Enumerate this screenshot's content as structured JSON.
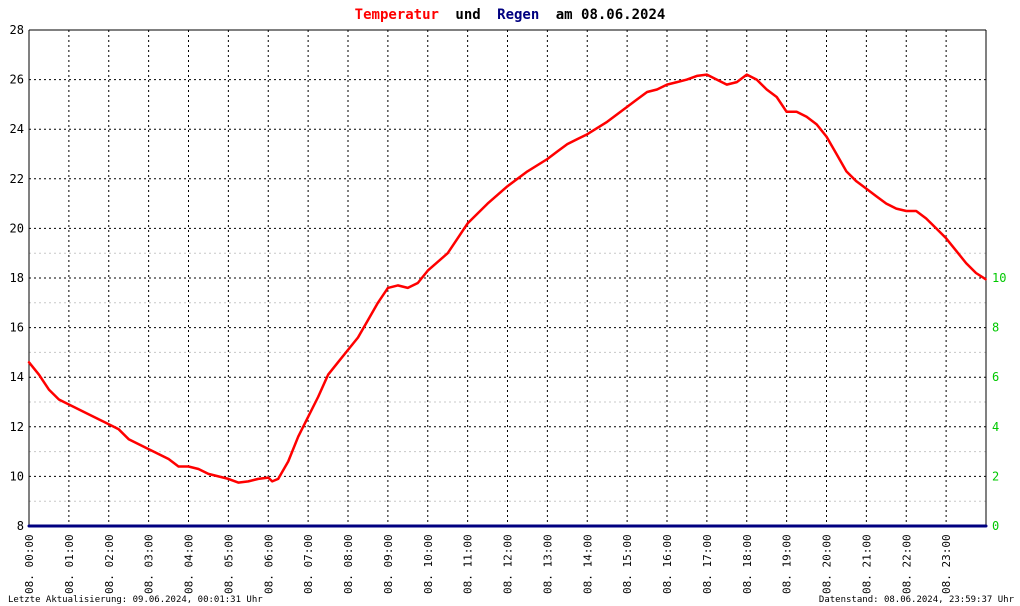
{
  "title": {
    "part1": "Temperatur",
    "part2": "und",
    "part3": "Regen",
    "part4": "am 08.06.2024",
    "color1": "#ff0000",
    "color2": "#000000",
    "color3": "#000080",
    "color4": "#000000"
  },
  "footer": {
    "left": "Letzte Aktualisierung: 09.06.2024, 00:01:31 Uhr",
    "right": "Datenstand: 08.06.2024, 23:59:37 Uhr"
  },
  "colors": {
    "temperature": "#ff0000",
    "rain": "#000080",
    "right_axis": "#00c800",
    "grid": "#000000",
    "subgrid": "#c8c8c8"
  },
  "chart_data": {
    "type": "line",
    "title": "Temperatur und Regen am 08.06.2024",
    "grid": true,
    "left_axis": {
      "ylim": [
        8,
        28
      ],
      "ticks": [
        8,
        10,
        12,
        14,
        16,
        18,
        20,
        22,
        24,
        26,
        28
      ]
    },
    "right_axis": {
      "ylim": [
        0,
        20
      ],
      "ticks": [
        0,
        2,
        4,
        6,
        8,
        10
      ],
      "tick_labels": [
        "0",
        "2",
        "4",
        "6",
        "8",
        "10"
      ]
    },
    "x_axis": {
      "xlim_hours": [
        0,
        24
      ],
      "tick_labels": [
        "08. 00:00",
        "08. 01:00",
        "08. 02:00",
        "08. 03:00",
        "08. 04:00",
        "08. 05:00",
        "08. 06:00",
        "08. 07:00",
        "08. 08:00",
        "08. 09:00",
        "08. 10:00",
        "08. 11:00",
        "08. 12:00",
        "08. 13:00",
        "08. 14:00",
        "08. 15:00",
        "08. 16:00",
        "08. 17:00",
        "08. 18:00",
        "08. 19:00",
        "08. 20:00",
        "08. 21:00",
        "08. 22:00",
        "08. 23:00"
      ]
    },
    "series": [
      {
        "key": "temperature",
        "axis": "left",
        "x_hours": [
          0,
          0.25,
          0.5,
          0.75,
          1,
          1.5,
          2,
          2.25,
          2.5,
          3,
          3.5,
          3.75,
          4,
          4.25,
          4.5,
          5,
          5.25,
          5.5,
          5.75,
          6,
          6.1,
          6.25,
          6.5,
          6.75,
          7,
          7.25,
          7.5,
          7.75,
          8,
          8.25,
          8.5,
          8.75,
          9,
          9.25,
          9.5,
          9.75,
          10,
          10.5,
          11,
          11.5,
          12,
          12.5,
          13,
          13.25,
          13.5,
          13.75,
          14,
          14.5,
          15,
          15.25,
          15.5,
          15.75,
          16,
          16.25,
          16.5,
          16.75,
          17,
          17.25,
          17.5,
          17.75,
          18,
          18.25,
          18.5,
          18.75,
          19,
          19.25,
          19.5,
          19.75,
          20,
          20.25,
          20.5,
          20.75,
          21,
          21.25,
          21.5,
          21.75,
          22,
          22.25,
          22.5,
          22.75,
          23,
          23.25,
          23.5,
          23.75,
          23.99
        ],
        "values": [
          14.6,
          14.1,
          13.5,
          13.1,
          12.9,
          12.5,
          12.1,
          11.9,
          11.5,
          11.1,
          10.7,
          10.4,
          10.4,
          10.3,
          10.1,
          9.9,
          9.75,
          9.8,
          9.9,
          9.95,
          9.8,
          9.9,
          10.6,
          11.6,
          12.4,
          13.2,
          14.1,
          14.6,
          15.1,
          15.6,
          16.3,
          17.0,
          17.6,
          17.7,
          17.6,
          17.8,
          18.3,
          19.0,
          20.2,
          21.0,
          21.7,
          22.3,
          22.8,
          23.1,
          23.4,
          23.6,
          23.8,
          24.3,
          24.9,
          25.2,
          25.5,
          25.6,
          25.8,
          25.9,
          26.0,
          26.15,
          26.2,
          26.0,
          25.8,
          25.9,
          26.2,
          26.0,
          25.6,
          25.3,
          24.7,
          24.7,
          24.5,
          24.2,
          23.7,
          23.0,
          22.3,
          21.9,
          21.6,
          21.3,
          21.0,
          20.8,
          20.7,
          20.7,
          20.4,
          20.0,
          19.6,
          19.1,
          18.6,
          18.2,
          17.95
        ]
      },
      {
        "key": "rain",
        "axis": "right",
        "x_hours": [
          0,
          24
        ],
        "values": [
          0,
          0
        ]
      }
    ]
  }
}
